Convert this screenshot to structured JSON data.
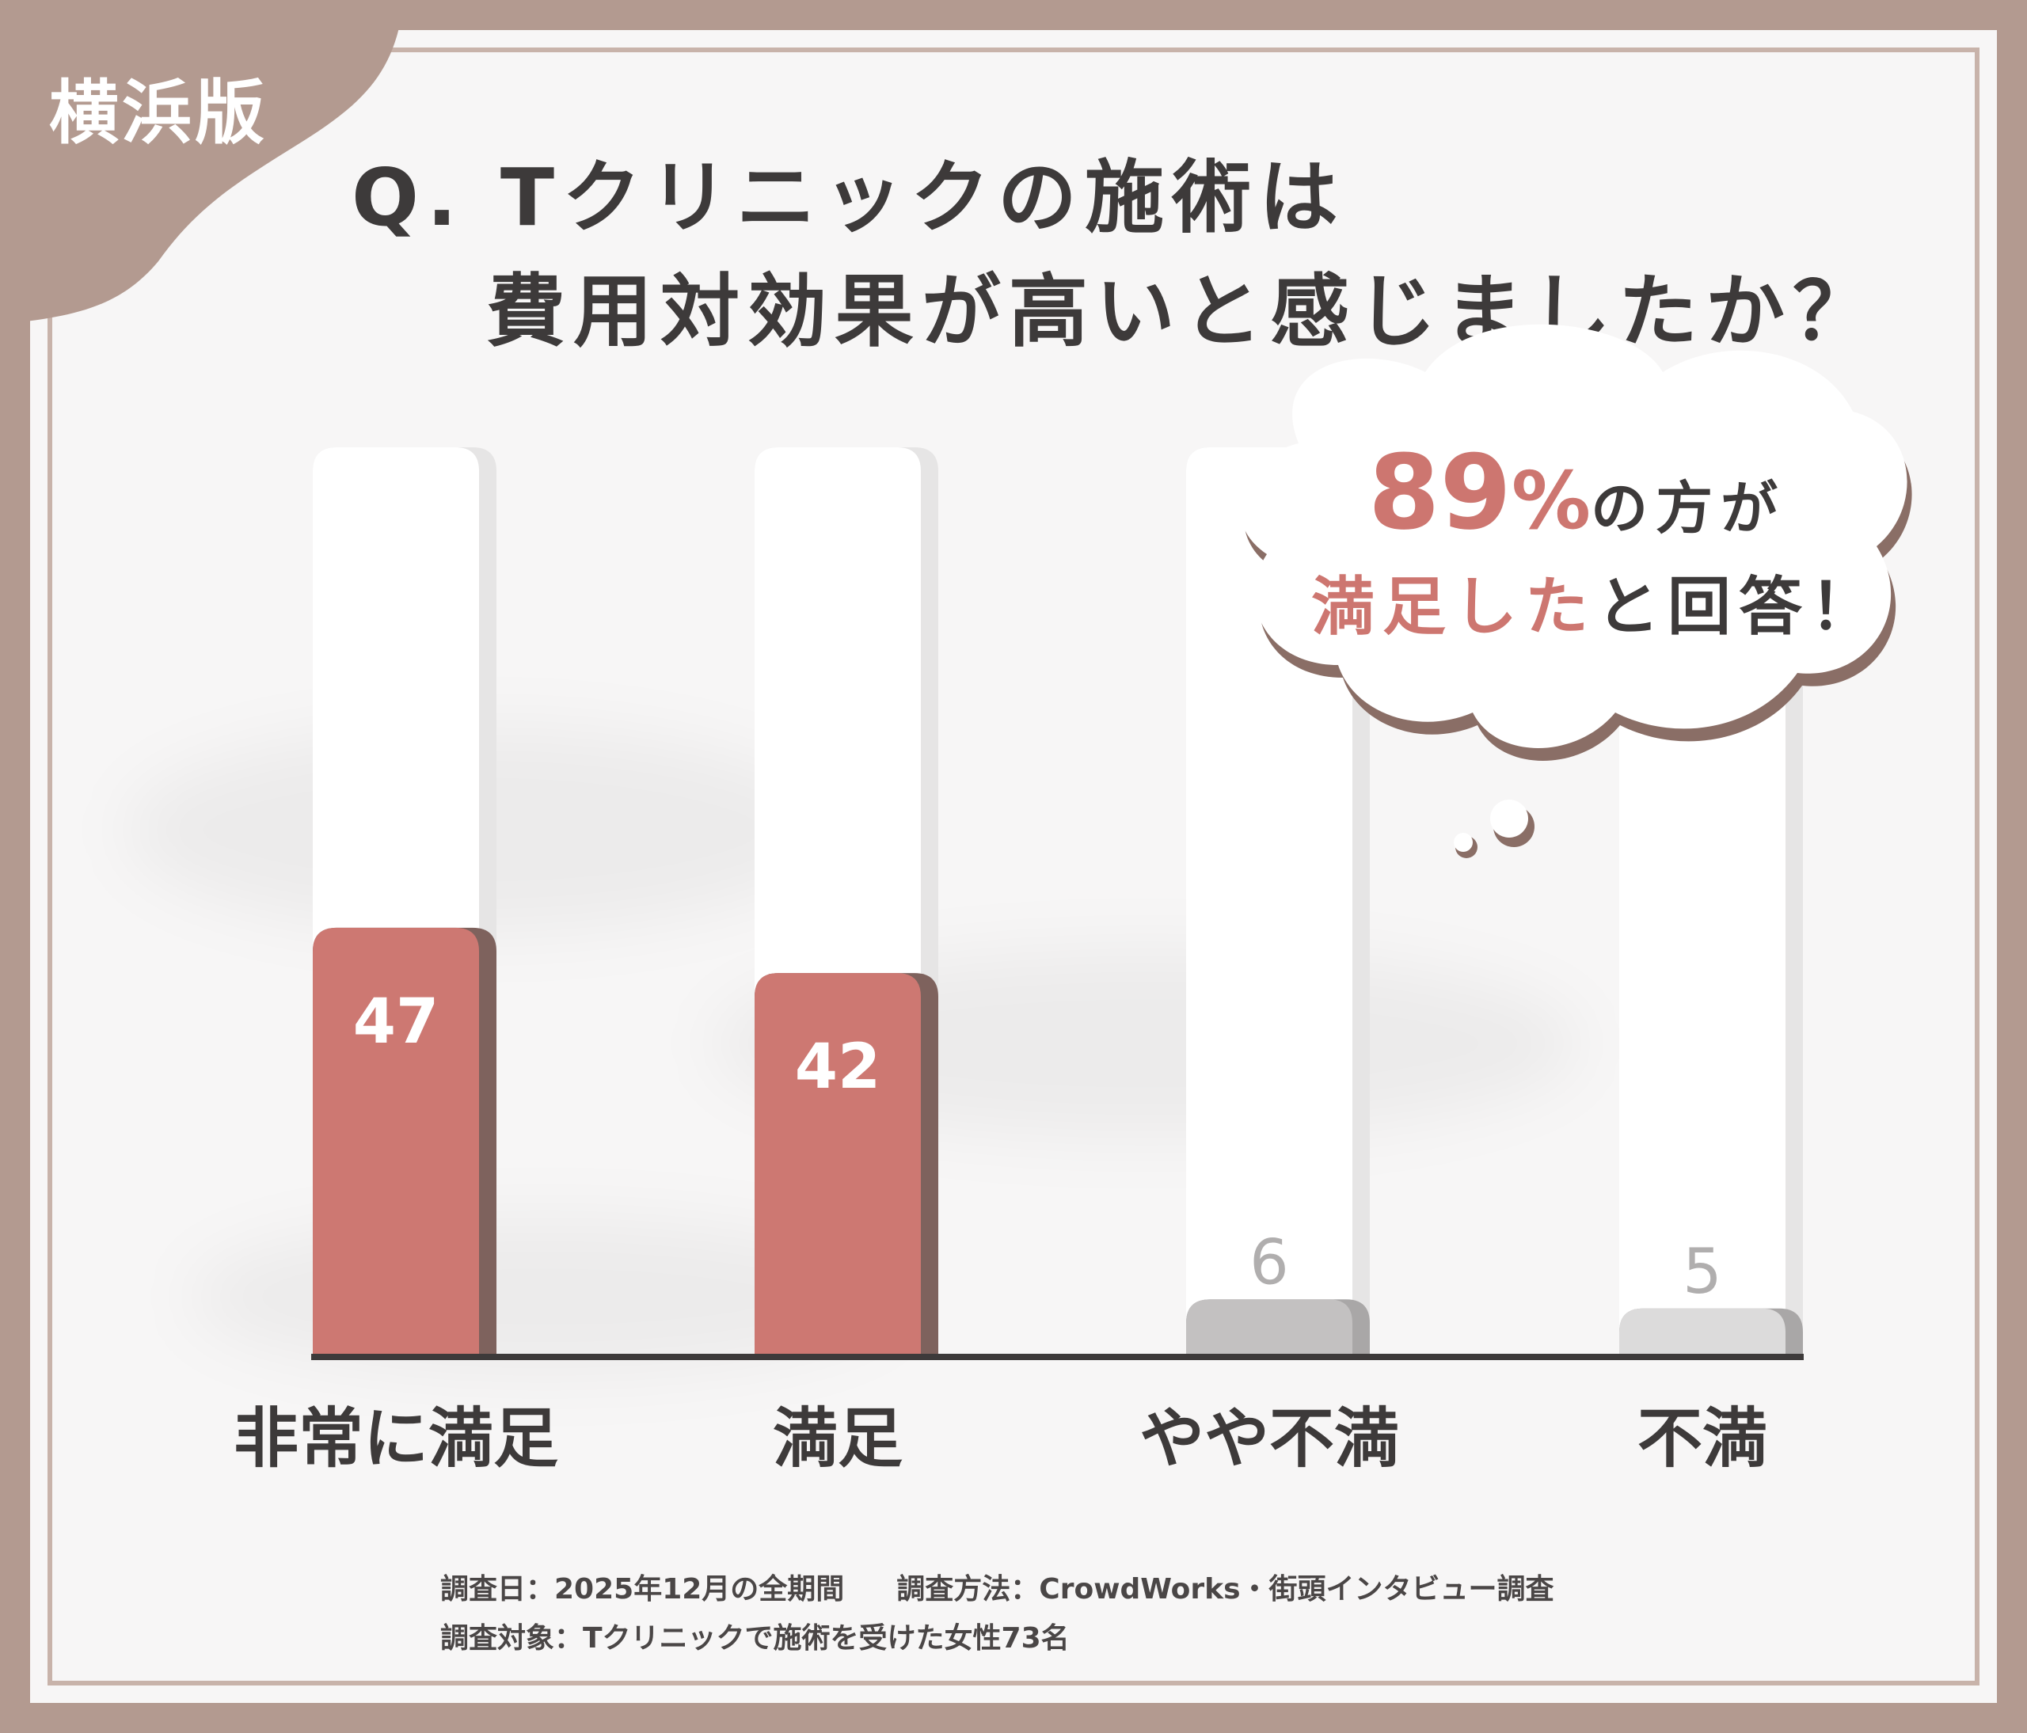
{
  "badge": "横浜版",
  "question": {
    "line1": "Q. Tクリニックの施術は",
    "line2": "費用対効果が高いと感じましたか？"
  },
  "callout": {
    "percent": "89",
    "percent_sign": "%",
    "line1_suffix": "の方が",
    "line2_highlight": "満足した",
    "line2_suffix": "と回答！"
  },
  "chart_data": {
    "type": "bar",
    "categories": [
      "非常に満足",
      "満足",
      "やや不満",
      "不満"
    ],
    "values": [
      47,
      42,
      6,
      5
    ],
    "value_labels": [
      "47",
      "42",
      "6",
      "5"
    ],
    "ylim": [
      0,
      100
    ],
    "grid": false,
    "colors": [
      "#cd7872",
      "#cd7872",
      "#c3c1c1",
      "#dcdbdb"
    ],
    "label_colors": [
      "#ffffff",
      "#ffffff",
      "#b0aeae",
      "#b0aeae"
    ],
    "title": "",
    "xlabel": "",
    "ylabel": ""
  },
  "notes": {
    "date": "調査日：2025年12月の全期間",
    "method": "調査方法：CrowdWorks・街頭インタビュー調査",
    "target": "調査対象：Tクリニックで施術を受けた女性73名"
  }
}
